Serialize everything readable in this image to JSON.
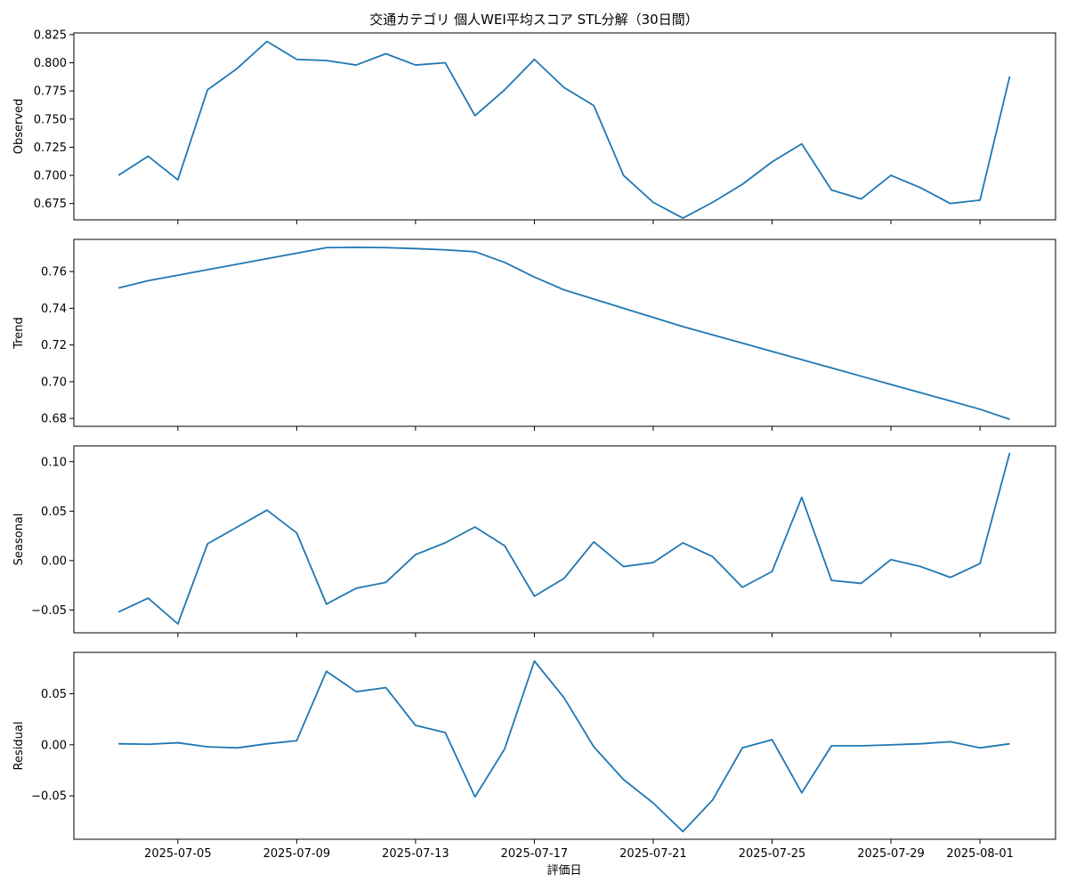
{
  "title": "交通カテゴリ 個人WEI平均スコア STL分解（30日間）",
  "xlabel": "評価日",
  "chart_data": {
    "type": "line",
    "line_color": "#1f77b4",
    "grid": false,
    "dates": [
      "2025-07-03",
      "2025-07-04",
      "2025-07-05",
      "2025-07-06",
      "2025-07-07",
      "2025-07-08",
      "2025-07-09",
      "2025-07-10",
      "2025-07-11",
      "2025-07-12",
      "2025-07-13",
      "2025-07-14",
      "2025-07-15",
      "2025-07-16",
      "2025-07-17",
      "2025-07-18",
      "2025-07-19",
      "2025-07-20",
      "2025-07-21",
      "2025-07-22",
      "2025-07-23",
      "2025-07-24",
      "2025-07-25",
      "2025-07-26",
      "2025-07-27",
      "2025-07-28",
      "2025-07-29",
      "2025-07-30",
      "2025-07-31",
      "2025-08-01",
      "2025-08-02"
    ],
    "x_ticks": [
      "2025-07-05",
      "2025-07-09",
      "2025-07-13",
      "2025-07-17",
      "2025-07-21",
      "2025-07-25",
      "2025-07-29",
      "2025-08-01"
    ],
    "xlim": [
      "2025-07-01T12:00",
      "2025-08-03T13:00"
    ],
    "panels": [
      {
        "ylabel": "Observed",
        "ylim": [
          0.6605,
          0.8265
        ],
        "yticks": [
          0.675,
          0.7,
          0.725,
          0.75,
          0.775,
          0.8,
          0.825
        ],
        "ytick_labels": [
          "0.675",
          "0.700",
          "0.725",
          "0.750",
          "0.775",
          "0.800",
          "0.825"
        ],
        "values": [
          0.7,
          0.717,
          0.696,
          0.776,
          0.795,
          0.819,
          0.803,
          0.802,
          0.798,
          0.808,
          0.798,
          0.8,
          0.753,
          0.776,
          0.803,
          0.778,
          0.762,
          0.7,
          0.676,
          0.662,
          0.676,
          0.692,
          0.712,
          0.728,
          0.687,
          0.679,
          0.7,
          0.689,
          0.675,
          0.678,
          0.788
        ]
      },
      {
        "ylabel": "Trend",
        "ylim": [
          0.6757,
          0.7775
        ],
        "yticks": [
          0.68,
          0.7,
          0.72,
          0.74,
          0.76
        ],
        "ytick_labels": [
          "0.68",
          "0.70",
          "0.72",
          "0.74",
          "0.76"
        ],
        "values": [
          0.751,
          0.755,
          0.758,
          0.761,
          0.764,
          0.767,
          0.77,
          0.773,
          0.7732,
          0.773,
          0.7725,
          0.7718,
          0.7708,
          0.765,
          0.757,
          0.75,
          0.745,
          0.74,
          0.735,
          0.73,
          0.7255,
          0.721,
          0.7165,
          0.712,
          0.7075,
          0.703,
          0.6985,
          0.694,
          0.6895,
          0.685,
          0.6795
        ]
      },
      {
        "ylabel": "Seasonal",
        "ylim": [
          -0.073,
          0.116
        ],
        "yticks": [
          -0.05,
          0.0,
          0.05,
          0.1
        ],
        "ytick_labels": [
          "−0.05",
          "0.00",
          "0.05",
          "0.10"
        ],
        "values": [
          -0.052,
          -0.038,
          -0.064,
          0.017,
          0.034,
          0.051,
          0.028,
          -0.044,
          -0.028,
          -0.022,
          0.006,
          0.018,
          0.034,
          0.015,
          -0.036,
          -0.018,
          0.019,
          -0.006,
          -0.002,
          0.018,
          0.004,
          -0.027,
          -0.011,
          0.064,
          -0.02,
          -0.023,
          0.001,
          -0.006,
          -0.017,
          -0.003,
          0.109
        ]
      },
      {
        "ylabel": "Residual",
        "ylim": [
          -0.0925,
          0.0905
        ],
        "yticks": [
          -0.05,
          0.0,
          0.05
        ],
        "ytick_labels": [
          "−0.05",
          "0.00",
          "0.05"
        ],
        "values": [
          0.001,
          0.0005,
          0.002,
          -0.002,
          -0.003,
          0.001,
          0.004,
          0.072,
          0.052,
          0.056,
          0.019,
          0.012,
          -0.051,
          -0.004,
          0.082,
          0.046,
          -0.002,
          -0.034,
          -0.057,
          -0.085,
          -0.054,
          -0.003,
          0.005,
          -0.047,
          -0.001,
          -0.001,
          0.0,
          0.001,
          0.003,
          -0.003,
          0.001
        ]
      }
    ]
  }
}
